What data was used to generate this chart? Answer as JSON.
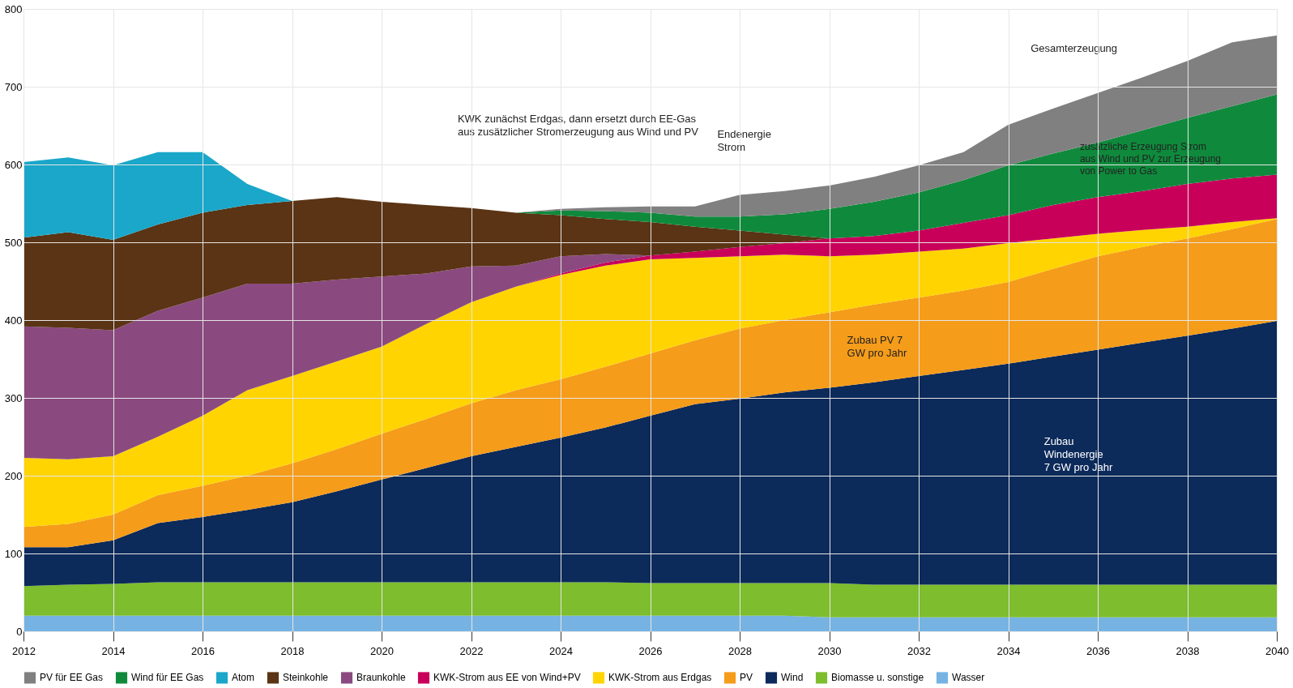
{
  "chart_data": {
    "type": "area",
    "stacked": true,
    "x": [
      2012,
      2013,
      2014,
      2015,
      2016,
      2017,
      2018,
      2019,
      2020,
      2021,
      2022,
      2023,
      2024,
      2025,
      2026,
      2027,
      2028,
      2029,
      2030,
      2031,
      2032,
      2033,
      2034,
      2035,
      2036,
      2037,
      2038,
      2039,
      2040
    ],
    "series": [
      {
        "name": "Wasser",
        "color": "#76b3e3",
        "values": [
          20,
          20,
          20,
          20,
          20,
          20,
          20,
          20,
          20,
          20,
          20,
          20,
          20,
          20,
          20,
          20,
          20,
          20,
          18,
          18,
          18,
          18,
          18,
          18,
          18,
          18,
          18,
          18,
          18
        ]
      },
      {
        "name": "Biomasse u. sonstige",
        "color": "#7dbd2e",
        "values": [
          38,
          40,
          41,
          43,
          43,
          43,
          43,
          43,
          43,
          43,
          43,
          43,
          43,
          43,
          42,
          42,
          42,
          42,
          44,
          42,
          42,
          42,
          42,
          42,
          42,
          42,
          42,
          42,
          42
        ]
      },
      {
        "name": "Wind",
        "color": "#0c2a5a",
        "values": [
          50,
          48,
          56,
          76,
          84,
          93,
          103,
          117,
          132,
          147,
          162,
          174,
          186,
          199,
          215,
          230,
          237,
          245,
          251,
          260,
          268,
          276,
          284,
          293,
          302,
          311,
          320,
          329,
          339
        ]
      },
      {
        "name": "PV",
        "color": "#f59c1a",
        "values": [
          26,
          30,
          33,
          36,
          40,
          44,
          50,
          54,
          59,
          63,
          68,
          73,
          75,
          78,
          80,
          82,
          90,
          93,
          97,
          100,
          101,
          102,
          105,
          113,
          120,
          123,
          125,
          128,
          131
        ]
      },
      {
        "name": "KWK-Strom aus Erdgas",
        "color": "#ffd400",
        "values": [
          89,
          83,
          75,
          75,
          90,
          110,
          112,
          113,
          112,
          122,
          130,
          133,
          134,
          130,
          121,
          106,
          93,
          84,
          72,
          64,
          59,
          54,
          50,
          39,
          29,
          22,
          15,
          9,
          1
        ]
      },
      {
        "name": "KWK-Strom aus EE von Wind+PV",
        "color": "#c8005a",
        "values": [
          null,
          null,
          null,
          null,
          null,
          null,
          null,
          null,
          null,
          null,
          null,
          0,
          2,
          4,
          5,
          8,
          12,
          15,
          23,
          24,
          27,
          33,
          36,
          43,
          47,
          50,
          55,
          56,
          56
        ]
      },
      {
        "name": "Braunkohle",
        "color": "#8a4a7f",
        "values": [
          169,
          169,
          162,
          162,
          152,
          137,
          119,
          105,
          90,
          65,
          46,
          27,
          22,
          11,
          0,
          null,
          null,
          null,
          null,
          null,
          null,
          null,
          null,
          null,
          null,
          null,
          null,
          null,
          null
        ]
      },
      {
        "name": "Steinkohle",
        "color": "#5a3414",
        "values": [
          114,
          123,
          116,
          111,
          109,
          101,
          106,
          106,
          96,
          88,
          75,
          68,
          53,
          45,
          43,
          32,
          21,
          11,
          0,
          null,
          null,
          null,
          null,
          null,
          null,
          null,
          null,
          null,
          null
        ]
      },
      {
        "name": "Atom",
        "color": "#1aa7c9",
        "values": [
          97,
          96,
          96,
          93,
          78,
          27,
          0,
          null,
          null,
          null,
          null,
          null,
          null,
          null,
          null,
          null,
          null,
          null,
          null,
          null,
          null,
          null,
          null,
          null,
          null,
          null,
          null,
          null,
          null
        ]
      },
      {
        "name": "Wind für EE Gas",
        "color": "#0f8a3c",
        "values": [
          null,
          null,
          null,
          null,
          null,
          null,
          null,
          null,
          null,
          null,
          null,
          0,
          6,
          10,
          12,
          13,
          18,
          26,
          38,
          44,
          49,
          55,
          64,
          66,
          70,
          78,
          85,
          93,
          103
        ]
      },
      {
        "name": "PV für EE Gas",
        "color": "#808080",
        "values": [
          null,
          null,
          null,
          null,
          null,
          null,
          null,
          null,
          null,
          null,
          null,
          0,
          2,
          5,
          8,
          13,
          28,
          30,
          30,
          32,
          35,
          36,
          52,
          58,
          64,
          68,
          73,
          82,
          76
        ]
      }
    ],
    "xlim": [
      2012,
      2040
    ],
    "xticks": [
      2012,
      2014,
      2016,
      2018,
      2020,
      2022,
      2024,
      2026,
      2028,
      2030,
      2032,
      2034,
      2036,
      2038,
      2040
    ],
    "ylim": [
      0,
      800
    ],
    "yticks": [
      0,
      100,
      200,
      300,
      400,
      500,
      600,
      700,
      800
    ],
    "grid": true,
    "legend": "bottom",
    "annotations": [
      "KWK zunächst Erdgas, dann ersetzt durch EE-Gas\naus zusätzlicher Stromerzeugung aus Wind und PV",
      "Endenergie\nStrom",
      "Gesamterzeugung",
      "zusätzliche Erzeugung Strom\naus Wind und PV zur Erzeugung\nvon Power to Gas",
      "Zubau PV 7\nGW pro Jahr",
      "Zubau\nWindenergie\n7 GW pro Jahr"
    ]
  }
}
